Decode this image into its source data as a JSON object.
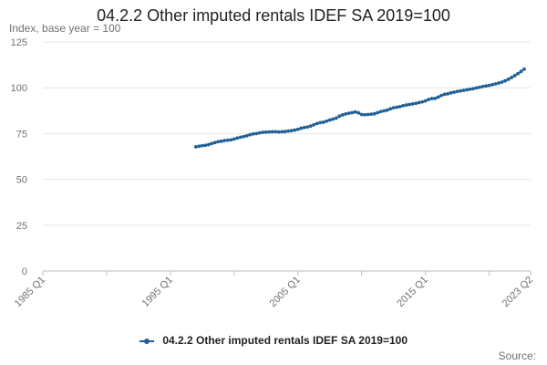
{
  "chart_data": {
    "type": "line",
    "title": "04.2.2 Other imputed rentals IDEF SA 2019=100",
    "ylabel": "Index, base year = 100",
    "ylim": [
      0,
      125
    ],
    "yticks": [
      0,
      25,
      50,
      75,
      100,
      125
    ],
    "xrange": [
      "1985 Q1",
      "2023 Q2"
    ],
    "xticks": [
      "1985 Q1",
      "1995 Q1",
      "2005 Q1",
      "2015 Q1",
      "2023 Q2"
    ],
    "grid": true,
    "legend_position": "bottom",
    "source_label": "Source:",
    "series": [
      {
        "name": "04.2.2 Other imputed rentals IDEF SA 2019=100",
        "color": "#206095",
        "start": "1997 Q1",
        "values": [
          67.8,
          68.1,
          68.4,
          68.6,
          69.0,
          69.6,
          70.1,
          70.6,
          70.8,
          71.2,
          71.4,
          71.6,
          72.0,
          72.6,
          73.0,
          73.4,
          73.8,
          74.4,
          74.8,
          75.0,
          75.4,
          75.7,
          75.8,
          75.9,
          76.0,
          76.0,
          75.9,
          76.0,
          76.1,
          76.4,
          76.6,
          76.9,
          77.3,
          77.9,
          78.3,
          78.6,
          79.1,
          79.8,
          80.5,
          81.0,
          81.2,
          81.8,
          82.4,
          82.9,
          83.4,
          84.5,
          85.2,
          85.7,
          86.1,
          86.4,
          86.8,
          86.3,
          85.4,
          85.3,
          85.4,
          85.6,
          85.8,
          86.4,
          87.0,
          87.4,
          87.8,
          88.5,
          89.1,
          89.4,
          89.7,
          90.2,
          90.6,
          90.9,
          91.2,
          91.5,
          91.9,
          92.3,
          92.8,
          93.6,
          94.1,
          94.2,
          94.9,
          95.8,
          96.4,
          96.7,
          97.2,
          97.6,
          98.0,
          98.3,
          98.6,
          98.9,
          99.2,
          99.5,
          99.9,
          100.3,
          100.7,
          101.0,
          101.3,
          101.7,
          102.1,
          102.6,
          103.1,
          103.8,
          104.6,
          105.6,
          106.6,
          107.7,
          108.9,
          110.2
        ]
      }
    ]
  }
}
